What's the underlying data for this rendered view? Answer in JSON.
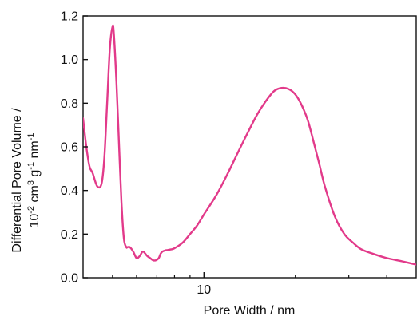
{
  "chart_data": {
    "type": "line",
    "title": "",
    "xlabel": "Pore Width / nm",
    "ylabel": {
      "line1": "Differential Pore Volume /",
      "line2": {
        "t1": "10",
        "s1": "-2",
        "t2": " cm",
        "s2": "3",
        "t3": " g",
        "s3": "-1",
        "t4": " nm",
        "s4": "-1"
      }
    },
    "x_scale": "log",
    "xlim": [
      4.0,
      50.0
    ],
    "ylim": [
      0.0,
      1.2
    ],
    "x_ticks": [
      10
    ],
    "x_tick_labels": [
      "10"
    ],
    "y_ticks": [
      0.0,
      0.2,
      0.4,
      0.6,
      0.8,
      1.0,
      1.2
    ],
    "y_tick_labels": [
      "0.0",
      "0.2",
      "0.4",
      "0.6",
      "0.8",
      "1.0",
      "1.2"
    ],
    "grid": false,
    "line_color": "#e23a8a",
    "series": [
      {
        "x": [
          4.0,
          4.1,
          4.2,
          4.3,
          4.45,
          4.6,
          4.7,
          4.8,
          4.9,
          5.0,
          5.05,
          5.15,
          5.25,
          5.35,
          5.45,
          5.55,
          5.6,
          5.7,
          5.85,
          6.0,
          6.15,
          6.3,
          6.5,
          6.65,
          6.8,
          6.95,
          7.1,
          7.2,
          7.3,
          7.45,
          7.6,
          7.8,
          8.0,
          8.5,
          9.0,
          9.5,
          10.0,
          11.0,
          12.0,
          13.0,
          14.0,
          15.0,
          16.0,
          17.0,
          18.0,
          19.0,
          20.0,
          21.0,
          22.0,
          23.0,
          24.0,
          25.0,
          27.0,
          29.0,
          31.0,
          33.0,
          36.0,
          40.0,
          45.0,
          50.0
        ],
        "y": [
          0.73,
          0.6,
          0.51,
          0.48,
          0.42,
          0.43,
          0.55,
          0.8,
          1.05,
          1.15,
          1.12,
          0.9,
          0.62,
          0.35,
          0.18,
          0.14,
          0.14,
          0.14,
          0.12,
          0.09,
          0.1,
          0.12,
          0.1,
          0.09,
          0.08,
          0.08,
          0.09,
          0.11,
          0.12,
          0.125,
          0.127,
          0.13,
          0.135,
          0.16,
          0.2,
          0.24,
          0.29,
          0.38,
          0.48,
          0.58,
          0.67,
          0.75,
          0.81,
          0.855,
          0.87,
          0.865,
          0.84,
          0.79,
          0.72,
          0.62,
          0.52,
          0.42,
          0.28,
          0.2,
          0.16,
          0.13,
          0.11,
          0.09,
          0.075,
          0.06
        ]
      }
    ]
  }
}
